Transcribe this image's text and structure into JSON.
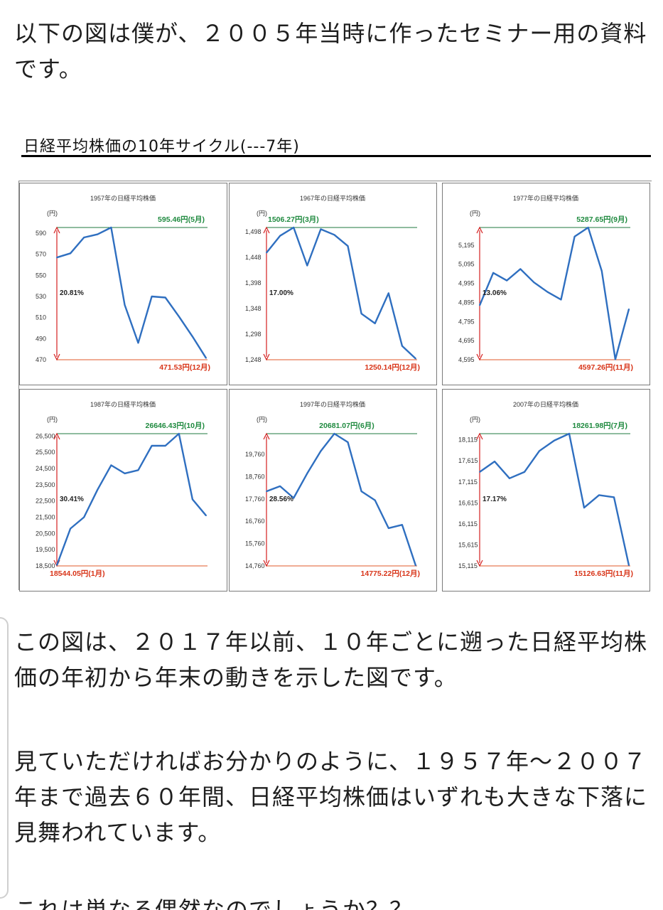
{
  "paragraphs": {
    "intro": "以下の図は僕が、２００５年当時に作ったセミナー用の資料です。",
    "p2": "この図は、２０１７年以前、１０年ごとに遡った日経平均株価の年初から年末の動きを示した図です。",
    "p3": "見ていただければお分かりのように、１９５７年～２００７年まで過去６０年間、日経平均株価はいずれも大きな下落に見舞われています。",
    "cut": "これは単なる偶然なのでしょうか？？"
  },
  "figure_title": "日経平均株価の10年サイクル(---7年)",
  "colors": {
    "line": "#2f6fc0",
    "high_line": "#1f7a3f",
    "low_line": "#e05a2a",
    "arrow": "#d42020",
    "high_text": "#1f8a3f",
    "low_text": "#d83418"
  },
  "chart_data": [
    {
      "type": "line",
      "title": "1957年の日経平均株価",
      "unit_label": "(円)",
      "yticks": [
        "590",
        "570",
        "550",
        "530",
        "510",
        "490",
        "470"
      ],
      "ylim": [
        470,
        595.46
      ],
      "values": [
        567,
        571,
        586,
        589,
        595.46,
        522,
        486,
        530,
        529,
        511,
        492,
        471.53
      ],
      "high_label": "595.46円(5月)",
      "low_label": "471.53円(12月)",
      "pct_label": "20.81%",
      "high_side": "right",
      "low_side": "right"
    },
    {
      "type": "line",
      "title": "1967年の日経平均株価",
      "unit_label": "(円)",
      "yticks": [
        "1,498",
        "1,448",
        "1,398",
        "1,348",
        "1,298",
        "1,248"
      ],
      "ylim": [
        1248,
        1506.27
      ],
      "values": [
        1457,
        1490,
        1506.27,
        1432,
        1503,
        1492,
        1470,
        1338,
        1319,
        1378,
        1275,
        1250.14
      ],
      "high_label": "1506.27円(3月)",
      "low_label": "1250.14円(12月)",
      "pct_label": "17.00%",
      "high_side": "left",
      "low_side": "right"
    },
    {
      "type": "line",
      "title": "1977年の日経平均株価",
      "unit_label": "(円)",
      "yticks": [
        "5,195",
        "5,095",
        "4,995",
        "4,895",
        "4,795",
        "4,695",
        "4,595"
      ],
      "ylim": [
        4595,
        5287.65
      ],
      "values": [
        4880,
        5050,
        5010,
        5070,
        5000,
        4950,
        4910,
        5240,
        5287.65,
        5060,
        4597.26,
        4860
      ],
      "high_label": "5287.65円(9月)",
      "low_label": "4597.26円(11月)",
      "pct_label": "13.06%",
      "high_side": "right",
      "low_side": "right"
    },
    {
      "type": "line",
      "title": "1987年の日経平均株価",
      "unit_label": "(円)",
      "yticks": [
        "26,500",
        "25,500",
        "24,500",
        "23,500",
        "22,500",
        "21,500",
        "20,500",
        "19,500",
        "18,500"
      ],
      "ylim": [
        18500,
        26646.43
      ],
      "values": [
        18544.05,
        20800,
        21500,
        23200,
        24700,
        24200,
        24400,
        25900,
        25900,
        26646.43,
        22600,
        21600
      ],
      "high_label": "26646.43円(10月)",
      "low_label": "18544.05円(1月)",
      "pct_label": "30.41%",
      "high_side": "right",
      "low_side": "left"
    },
    {
      "type": "line",
      "title": "1997年の日経平均株価",
      "unit_label": "(円)",
      "yticks": [
        "19,760",
        "18,760",
        "17,760",
        "16,760",
        "15,760",
        "14,760"
      ],
      "ylim": [
        14760,
        20681.07
      ],
      "values": [
        18100,
        18330,
        17800,
        18900,
        19900,
        20681.07,
        20300,
        18100,
        17700,
        16450,
        16600,
        14775.22
      ],
      "high_label": "20681.07円(6月)",
      "low_label": "14775.22円(12月)",
      "pct_label": "28.56%",
      "high_side": "center",
      "low_side": "right"
    },
    {
      "type": "line",
      "title": "2007年の日経平均株価",
      "unit_label": "(円)",
      "yticks": [
        "18,115",
        "17,615",
        "17,115",
        "16,615",
        "16,115",
        "15,615",
        "15,115"
      ],
      "ylim": [
        15115,
        18261.98
      ],
      "values": [
        17350,
        17600,
        17200,
        17350,
        17850,
        18100,
        18261.98,
        16500,
        16800,
        16750,
        15126.63
      ],
      "high_label": "18261.98円(7月)",
      "low_label": "15126.63円(11月)",
      "pct_label": "17.17%",
      "high_side": "right",
      "low_side": "right"
    }
  ]
}
